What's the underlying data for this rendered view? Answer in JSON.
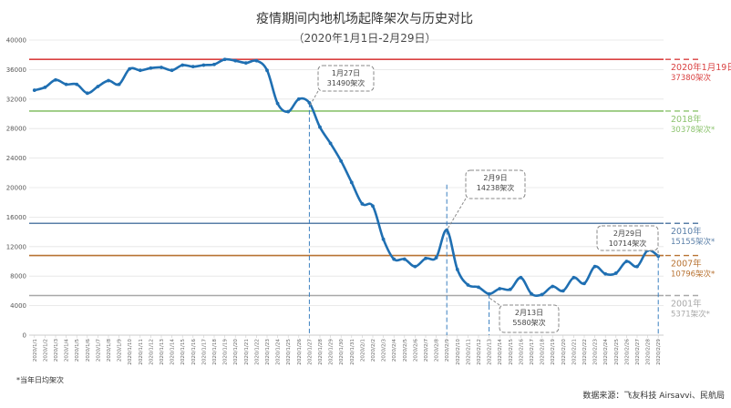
{
  "chart_data": {
    "type": "line",
    "title": "疫情期间内地机场起降架次与历史对比",
    "subtitle": "（2020年1月1日-2月29日）",
    "xlabel": "",
    "ylabel": "",
    "ylim": [
      0,
      40000
    ],
    "yticks": [
      0,
      4000,
      8000,
      12000,
      16000,
      20000,
      24000,
      28000,
      32000,
      36000,
      40000
    ],
    "grid": true,
    "x": [
      "2020/1/1",
      "2020/1/2",
      "2020/1/3",
      "2020/1/4",
      "2020/1/5",
      "2020/1/6",
      "2020/1/7",
      "2020/1/8",
      "2020/1/9",
      "2020/1/10",
      "2020/1/11",
      "2020/1/12",
      "2020/1/13",
      "2020/1/14",
      "2020/1/15",
      "2020/1/16",
      "2020/1/17",
      "2020/1/18",
      "2020/1/19",
      "2020/1/20",
      "2020/1/21",
      "2020/1/22",
      "2020/1/23",
      "2020/1/24",
      "2020/1/25",
      "2020/1/26",
      "2020/1/27",
      "2020/1/28",
      "2020/1/29",
      "2020/1/30",
      "2020/1/31",
      "2020/2/1",
      "2020/2/2",
      "2020/2/3",
      "2020/2/4",
      "2020/2/5",
      "2020/2/6",
      "2020/2/7",
      "2020/2/8",
      "2020/2/9",
      "2020/2/10",
      "2020/2/11",
      "2020/2/12",
      "2020/2/13",
      "2020/2/14",
      "2020/2/15",
      "2020/2/16",
      "2020/2/17",
      "2020/2/18",
      "2020/2/19",
      "2020/2/20",
      "2020/2/21",
      "2020/2/22",
      "2020/2/23",
      "2020/2/24",
      "2020/2/25",
      "2020/2/26",
      "2020/2/27",
      "2020/2/28",
      "2020/2/29"
    ],
    "series": [
      {
        "name": "",
        "color": "#1f6fb2",
        "values": [
          33200,
          33600,
          34600,
          34000,
          34000,
          32800,
          33700,
          34500,
          34000,
          36100,
          35900,
          36200,
          36300,
          35900,
          36600,
          36400,
          36600,
          36700,
          37380,
          37200,
          36900,
          37200,
          35900,
          31400,
          30300,
          32000,
          31490,
          28200,
          26000,
          23600,
          20700,
          17800,
          17500,
          13000,
          10300,
          10300,
          9300,
          10400,
          10500,
          14238,
          8900,
          6800,
          6500,
          5580,
          6300,
          6200,
          7800,
          5600,
          5500,
          6600,
          6000,
          7800,
          7000,
          9300,
          8300,
          8400,
          10000,
          9300,
          11500,
          10714
        ]
      }
    ],
    "reference_lines": [
      {
        "label": "2020年1月19日",
        "value_text": "37380架次",
        "value": 37380,
        "color": "#d94040"
      },
      {
        "label": "2018年",
        "value_text": "30378架次*",
        "value": 30378,
        "color": "#8cc36e"
      },
      {
        "label": "2010年",
        "value_text": "15155架次*",
        "value": 15155,
        "color": "#5a7fa8"
      },
      {
        "label": "2007年",
        "value_text": "10796架次*",
        "value": 10796,
        "color": "#b87333"
      },
      {
        "label": "2001年",
        "value_text": "5371架次*",
        "value": 5371,
        "color": "#a8a8a8"
      }
    ],
    "annotations": [
      {
        "date": "1月27日",
        "value_text": "31490架次",
        "x_index": 26
      },
      {
        "date": "2月9日",
        "value_text": "14238架次",
        "x_index": 39
      },
      {
        "date": "2月13日",
        "value_text": "5580架次",
        "x_index": 43
      },
      {
        "date": "2月29日",
        "value_text": "10714架次",
        "x_index": 59
      }
    ]
  },
  "footnote": "*当年日均架次",
  "source": "数据来源：飞友科技 Airsavvi、民航局"
}
